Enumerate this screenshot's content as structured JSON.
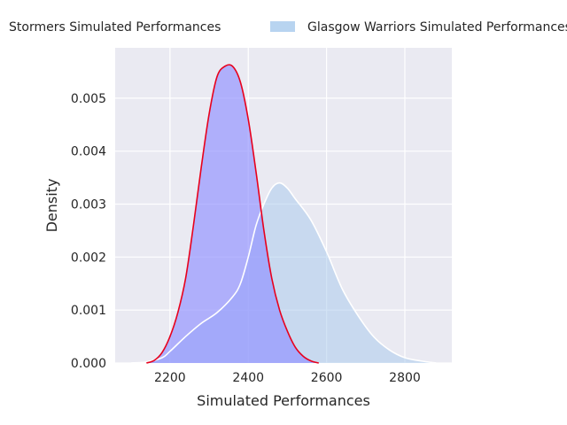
{
  "chart_data": {
    "type": "area",
    "title": "",
    "xlabel": "Simulated Performances",
    "ylabel": "Density",
    "xlim": [
      2060,
      2920
    ],
    "ylim": [
      0,
      0.00595
    ],
    "x_ticks": [
      2200,
      2400,
      2600,
      2800
    ],
    "x_tick_labels": [
      "2200",
      "2400",
      "2600",
      "2800"
    ],
    "y_ticks": [
      0,
      0.001,
      0.002,
      0.003,
      0.004,
      0.005
    ],
    "y_tick_labels": [
      "0.000",
      "0.001",
      "0.002",
      "0.003",
      "0.004",
      "0.005"
    ],
    "grid": true,
    "legend_position": "top",
    "series": [
      {
        "name": "Stormers Simulated Performances",
        "fill": "#8f8fff",
        "fill_opacity": 0.65,
        "line": "#e8001c",
        "points": [
          [
            2140,
            0.0
          ],
          [
            2160,
            5e-05
          ],
          [
            2180,
            0.0002
          ],
          [
            2200,
            0.0005
          ],
          [
            2220,
            0.00095
          ],
          [
            2240,
            0.0016
          ],
          [
            2260,
            0.0026
          ],
          [
            2280,
            0.0037
          ],
          [
            2300,
            0.0047
          ],
          [
            2320,
            0.0054
          ],
          [
            2340,
            0.0056
          ],
          [
            2360,
            0.0056
          ],
          [
            2380,
            0.0053
          ],
          [
            2400,
            0.0046
          ],
          [
            2420,
            0.0036
          ],
          [
            2440,
            0.0025
          ],
          [
            2460,
            0.0016
          ],
          [
            2480,
            0.001
          ],
          [
            2500,
            0.0006
          ],
          [
            2520,
            0.0003
          ],
          [
            2540,
            0.00013
          ],
          [
            2560,
            4e-05
          ],
          [
            2580,
            0.0
          ]
        ]
      },
      {
        "name": "Glasgow Warriors Simulated Performances",
        "fill": "#a6c8ec",
        "fill_opacity": 0.5,
        "line": "#ffffff",
        "points": [
          [
            2100,
            0.0
          ],
          [
            2140,
            2e-05
          ],
          [
            2180,
            0.0001
          ],
          [
            2200,
            0.00022
          ],
          [
            2240,
            0.0005
          ],
          [
            2280,
            0.00075
          ],
          [
            2320,
            0.00095
          ],
          [
            2360,
            0.00125
          ],
          [
            2380,
            0.0015
          ],
          [
            2400,
            0.002
          ],
          [
            2420,
            0.0026
          ],
          [
            2440,
            0.003
          ],
          [
            2460,
            0.0033
          ],
          [
            2480,
            0.0034
          ],
          [
            2500,
            0.0033
          ],
          [
            2520,
            0.0031
          ],
          [
            2560,
            0.0027
          ],
          [
            2600,
            0.0021
          ],
          [
            2640,
            0.0014
          ],
          [
            2680,
            0.0009
          ],
          [
            2720,
            0.0005
          ],
          [
            2760,
            0.00025
          ],
          [
            2800,
            0.0001
          ],
          [
            2840,
            4e-05
          ],
          [
            2880,
            0.0
          ]
        ]
      }
    ]
  }
}
